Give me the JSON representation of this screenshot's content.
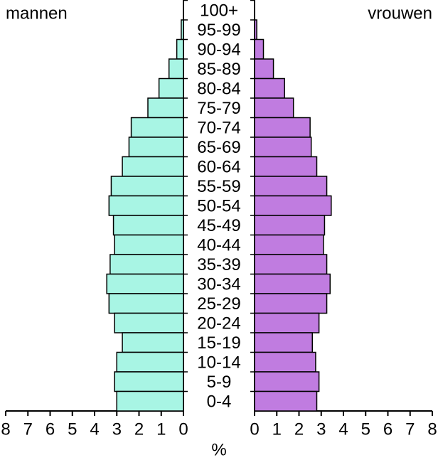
{
  "chart_data": {
    "type": "pyramid",
    "categories": [
      "100+",
      "95-99",
      "90-94",
      "85-89",
      "80-84",
      "75-79",
      "70-74",
      "65-69",
      "60-64",
      "55-59",
      "50-54",
      "45-49",
      "40-44",
      "35-39",
      "30-34",
      "25-29",
      "20-24",
      "15-19",
      "10-14",
      "5-9",
      "0-4"
    ],
    "series": [
      {
        "name": "mannen",
        "color": "#a8f5e4",
        "values": [
          0,
          0.1,
          0.3,
          0.65,
          1.1,
          1.6,
          2.35,
          2.45,
          2.75,
          3.25,
          3.35,
          3.15,
          3.1,
          3.3,
          3.45,
          3.35,
          3.1,
          2.75,
          3.0,
          3.1,
          3.0
        ]
      },
      {
        "name": "vrouwen",
        "color": "#c07ce0",
        "values": [
          0,
          0.1,
          0.4,
          0.85,
          1.35,
          1.75,
          2.5,
          2.55,
          2.8,
          3.25,
          3.45,
          3.15,
          3.1,
          3.25,
          3.4,
          3.25,
          2.9,
          2.6,
          2.75,
          2.9,
          2.8
        ]
      }
    ],
    "xlim": [
      0,
      8
    ],
    "xticks": [
      0,
      1,
      2,
      3,
      4,
      5,
      6,
      7,
      8
    ],
    "xlabel": "%"
  }
}
